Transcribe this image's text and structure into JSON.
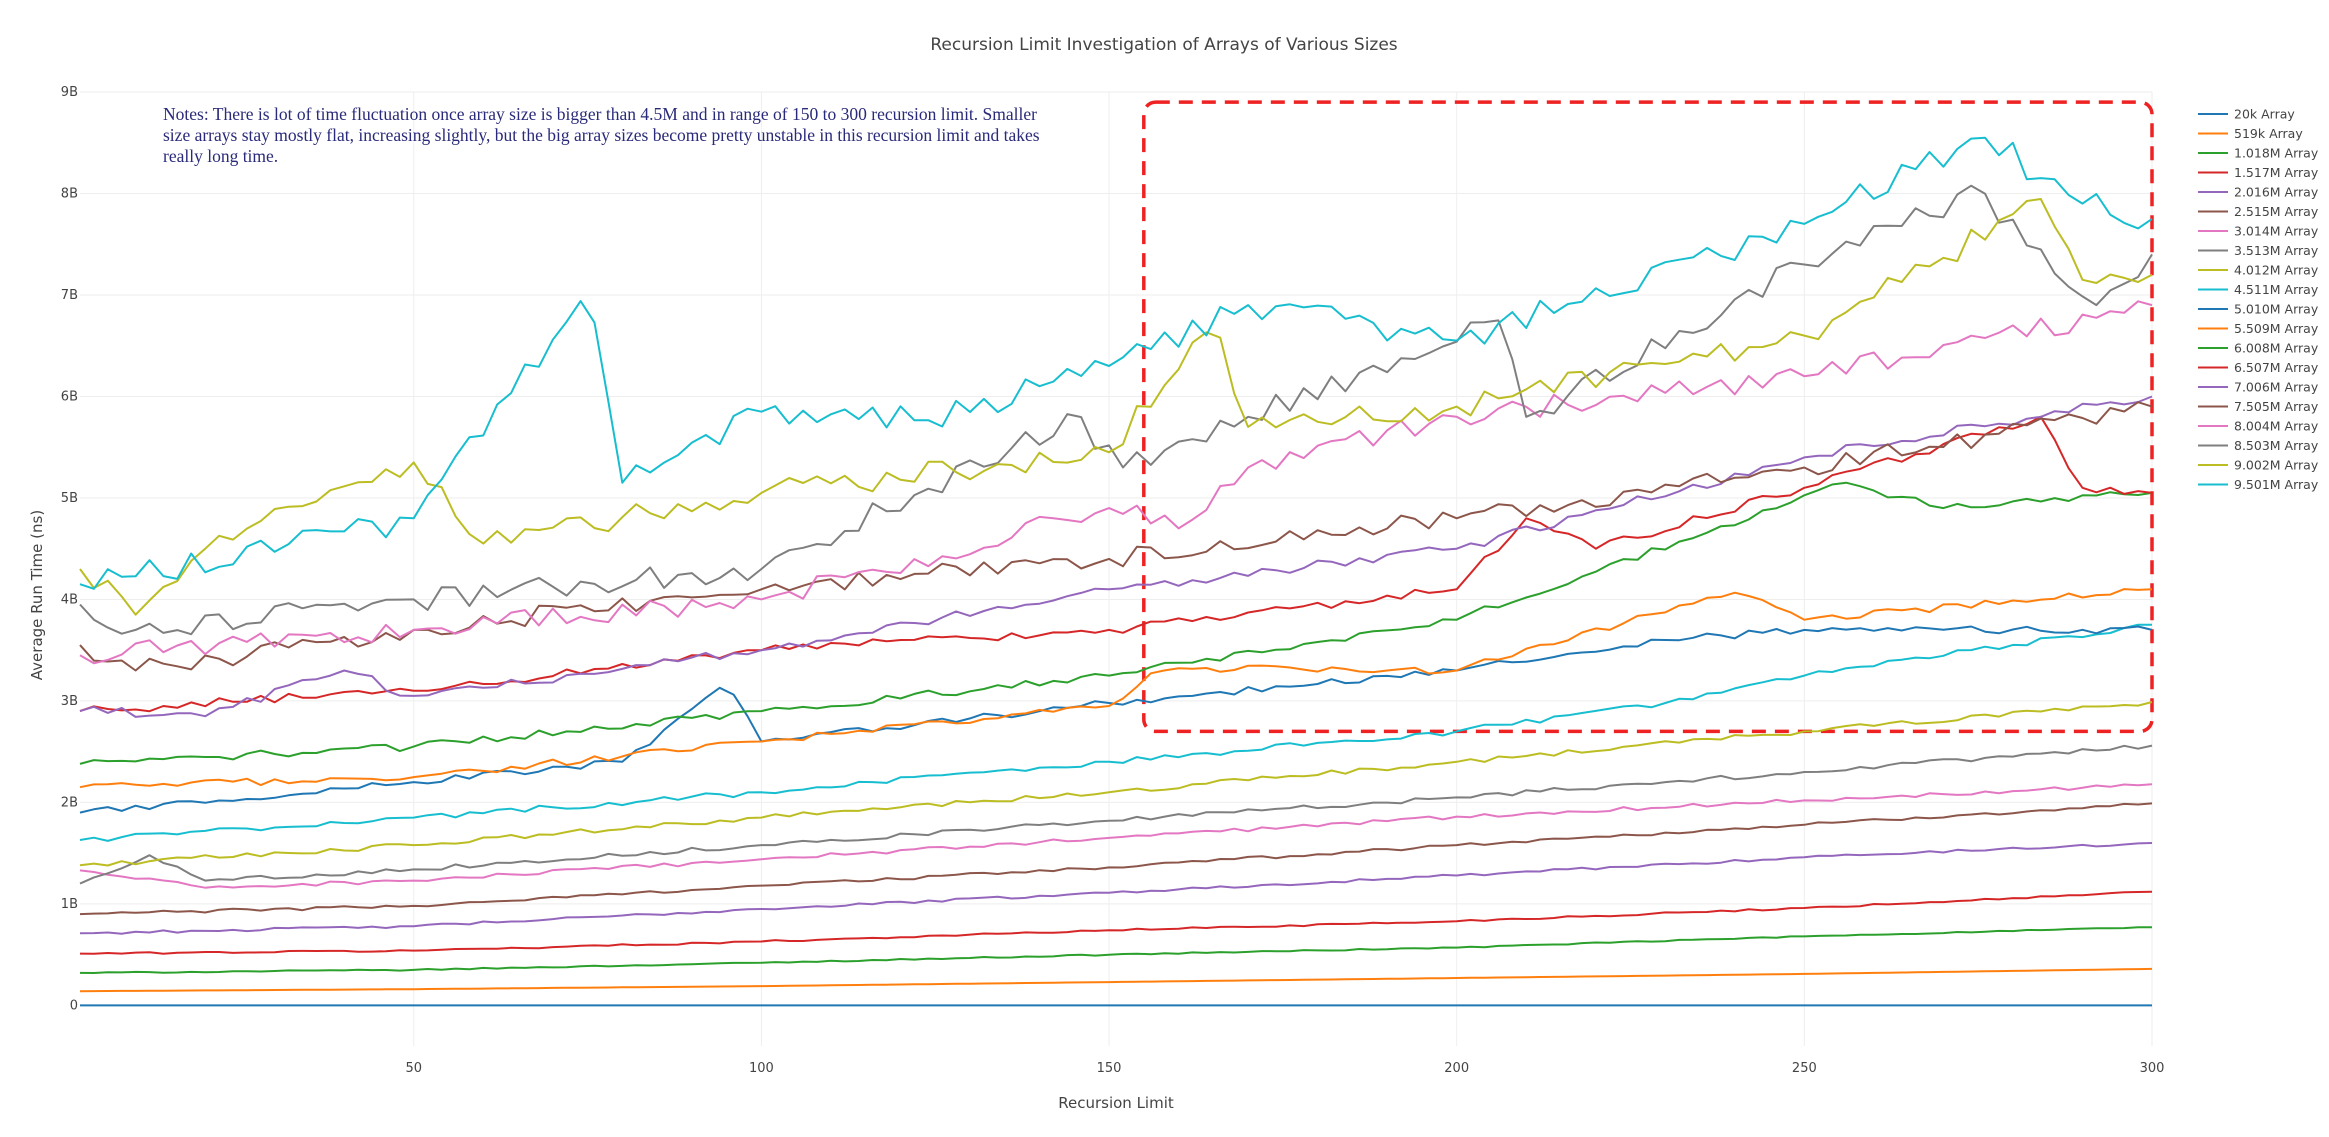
{
  "chart_data": {
    "type": "line",
    "title": "Recursion Limit Investigation of Arrays of Various Sizes",
    "xlabel": "Recursion Limit",
    "ylabel": "Average Run Time (ns)",
    "xlim": [
      2,
      300
    ],
    "ylim": [
      -400000000,
      9000000000
    ],
    "x_ticks": [
      50,
      100,
      150,
      200,
      250,
      300
    ],
    "y_ticks": [
      0,
      1000000000,
      2000000000,
      3000000000,
      4000000000,
      5000000000,
      6000000000,
      7000000000,
      8000000000,
      9000000000
    ],
    "y_tick_labels": [
      "0",
      "1B",
      "2B",
      "3B",
      "4B",
      "5B",
      "6B",
      "7B",
      "8B",
      "9B"
    ],
    "grid": true,
    "legend_position": "right",
    "annotation": "Notes:  There is lot of time fluctuation once array size is bigger than 4.5M and in range of 150 to 300 recursion limit. Smaller size arrays stay mostly flat, increasing slightly, but the big array sizes become pretty unstable in this recursion limit and takes really long time.",
    "highlight_region": {
      "x": [
        155,
        300
      ],
      "y": [
        2700000000,
        8900000000
      ],
      "style": "dashed",
      "color": "#ee2222"
    },
    "series": [
      {
        "name": "20k Array",
        "color": "#1f77b4",
        "points": [
          [
            2,
            0
          ],
          [
            300,
            0
          ]
        ]
      },
      {
        "name": "519k  Array",
        "color": "#ff7f0e",
        "points": [
          [
            2,
            140000000
          ],
          [
            50,
            160000000
          ],
          [
            100,
            190000000
          ],
          [
            150,
            230000000
          ],
          [
            200,
            270000000
          ],
          [
            250,
            310000000
          ],
          [
            300,
            360000000
          ]
        ]
      },
      {
        "name": "1.018M  Array",
        "color": "#2ca02c",
        "points": [
          [
            2,
            320000000
          ],
          [
            50,
            350000000
          ],
          [
            100,
            420000000
          ],
          [
            150,
            500000000
          ],
          [
            200,
            570000000
          ],
          [
            250,
            680000000
          ],
          [
            300,
            770000000
          ]
        ]
      },
      {
        "name": "1.517M  Array",
        "color": "#d62728",
        "points": [
          [
            2,
            510000000
          ],
          [
            50,
            540000000
          ],
          [
            100,
            630000000
          ],
          [
            150,
            740000000
          ],
          [
            200,
            830000000
          ],
          [
            250,
            960000000
          ],
          [
            300,
            1120000000
          ]
        ]
      },
      {
        "name": "2.016M Array",
        "color": "#9467bd",
        "points": [
          [
            2,
            710000000
          ],
          [
            50,
            780000000
          ],
          [
            100,
            950000000
          ],
          [
            150,
            1110000000
          ],
          [
            200,
            1280000000
          ],
          [
            250,
            1460000000
          ],
          [
            300,
            1600000000
          ]
        ]
      },
      {
        "name": "2.515M Array",
        "color": "#8c564b",
        "points": [
          [
            2,
            900000000
          ],
          [
            50,
            980000000
          ],
          [
            100,
            1180000000
          ],
          [
            150,
            1360000000
          ],
          [
            200,
            1580000000
          ],
          [
            250,
            1780000000
          ],
          [
            300,
            1990000000
          ]
        ]
      },
      {
        "name": "3.014M  Array",
        "color": "#e377c2",
        "points": [
          [
            2,
            1330000000
          ],
          [
            20,
            1160000000
          ],
          [
            50,
            1230000000
          ],
          [
            100,
            1440000000
          ],
          [
            150,
            1650000000
          ],
          [
            200,
            1860000000
          ],
          [
            250,
            2020000000
          ],
          [
            300,
            2180000000
          ]
        ]
      },
      {
        "name": "3.513M Array",
        "color": "#7f7f7f",
        "points": [
          [
            2,
            1200000000
          ],
          [
            12,
            1480000000
          ],
          [
            20,
            1230000000
          ],
          [
            50,
            1340000000
          ],
          [
            100,
            1580000000
          ],
          [
            150,
            1820000000
          ],
          [
            200,
            2050000000
          ],
          [
            250,
            2300000000
          ],
          [
            300,
            2560000000
          ]
        ]
      },
      {
        "name": "4.012M Array",
        "color": "#bcbd22",
        "points": [
          [
            2,
            1380000000
          ],
          [
            50,
            1580000000
          ],
          [
            100,
            1850000000
          ],
          [
            150,
            2100000000
          ],
          [
            200,
            2400000000
          ],
          [
            250,
            2700000000
          ],
          [
            300,
            2990000000
          ]
        ]
      },
      {
        "name": "4.511M Array",
        "color": "#17becf",
        "points": [
          [
            2,
            1630000000
          ],
          [
            50,
            1850000000
          ],
          [
            100,
            2100000000
          ],
          [
            150,
            2400000000
          ],
          [
            200,
            2700000000
          ],
          [
            230,
            2980000000
          ],
          [
            250,
            3250000000
          ],
          [
            300,
            3750000000
          ]
        ]
      },
      {
        "name": "5.010M Array",
        "color": "#1f77b4",
        "points": [
          [
            2,
            1900000000
          ],
          [
            50,
            2200000000
          ],
          [
            80,
            2400000000
          ],
          [
            95,
            3150000000
          ],
          [
            100,
            2600000000
          ],
          [
            150,
            2980000000
          ],
          [
            200,
            3300000000
          ],
          [
            230,
            3600000000
          ],
          [
            250,
            3700000000
          ],
          [
            300,
            3700000000
          ]
        ]
      },
      {
        "name": "5.509M Array",
        "color": "#ff7f0e",
        "points": [
          [
            2,
            2150000000
          ],
          [
            50,
            2250000000
          ],
          [
            100,
            2600000000
          ],
          [
            150,
            2950000000
          ],
          [
            157,
            3320000000
          ],
          [
            200,
            3300000000
          ],
          [
            241,
            4100000000
          ],
          [
            250,
            3800000000
          ],
          [
            300,
            4100000000
          ]
        ]
      },
      {
        "name": "6.008M Array",
        "color": "#2ca02c",
        "points": [
          [
            2,
            2380000000
          ],
          [
            50,
            2550000000
          ],
          [
            100,
            2900000000
          ],
          [
            150,
            3250000000
          ],
          [
            200,
            3800000000
          ],
          [
            256,
            5150000000
          ],
          [
            270,
            4900000000
          ],
          [
            300,
            5050000000
          ]
        ]
      },
      {
        "name": "6.507M Array",
        "color": "#d62728",
        "points": [
          [
            2,
            2900000000
          ],
          [
            50,
            3100000000
          ],
          [
            100,
            3500000000
          ],
          [
            150,
            3700000000
          ],
          [
            200,
            4100000000
          ],
          [
            210,
            4800000000
          ],
          [
            220,
            4500000000
          ],
          [
            284,
            5800000000
          ],
          [
            290,
            5100000000
          ],
          [
            300,
            5050000000
          ]
        ]
      },
      {
        "name": "7.006M Array",
        "color": "#9467bd",
        "points": [
          [
            2,
            2900000000
          ],
          [
            20,
            2850000000
          ],
          [
            40,
            3300000000
          ],
          [
            50,
            3050000000
          ],
          [
            100,
            3500000000
          ],
          [
            150,
            4100000000
          ],
          [
            200,
            4500000000
          ],
          [
            250,
            5400000000
          ],
          [
            300,
            6000000000
          ]
        ]
      },
      {
        "name": "7.505M Array",
        "color": "#8c564b",
        "points": [
          [
            2,
            3550000000
          ],
          [
            10,
            3300000000
          ],
          [
            50,
            3700000000
          ],
          [
            100,
            4100000000
          ],
          [
            150,
            4400000000
          ],
          [
            200,
            4800000000
          ],
          [
            250,
            5300000000
          ],
          [
            300,
            5900000000
          ]
        ]
      },
      {
        "name": "8.004M Array",
        "color": "#e377c2",
        "points": [
          [
            2,
            3450000000
          ],
          [
            50,
            3700000000
          ],
          [
            100,
            4000000000
          ],
          [
            150,
            4900000000
          ],
          [
            160,
            4700000000
          ],
          [
            170,
            5300000000
          ],
          [
            200,
            5800000000
          ],
          [
            250,
            6200000000
          ],
          [
            300,
            6900000000
          ]
        ]
      },
      {
        "name": "8.503M Array",
        "color": "#7f7f7f",
        "points": [
          [
            2,
            3950000000
          ],
          [
            10,
            3700000000
          ],
          [
            50,
            4000000000
          ],
          [
            100,
            4300000000
          ],
          [
            145,
            5800000000
          ],
          [
            152,
            5300000000
          ],
          [
            170,
            5800000000
          ],
          [
            206,
            6750000000
          ],
          [
            210,
            5800000000
          ],
          [
            250,
            7300000000
          ],
          [
            275,
            8000000000
          ],
          [
            292,
            6900000000
          ],
          [
            300,
            7400000000
          ]
        ]
      },
      {
        "name": "9.002M Array",
        "color": "#bcbd22",
        "points": [
          [
            2,
            4300000000
          ],
          [
            10,
            3850000000
          ],
          [
            20,
            4500000000
          ],
          [
            50,
            5350000000
          ],
          [
            60,
            4550000000
          ],
          [
            100,
            5050000000
          ],
          [
            150,
            5450000000
          ],
          [
            165,
            6750000000
          ],
          [
            170,
            5700000000
          ],
          [
            200,
            5900000000
          ],
          [
            250,
            6600000000
          ],
          [
            285,
            7950000000
          ],
          [
            290,
            7150000000
          ],
          [
            300,
            7200000000
          ]
        ]
      },
      {
        "name": "9.501M Array",
        "color": "#17becf",
        "points": [
          [
            2,
            4150000000
          ],
          [
            50,
            4800000000
          ],
          [
            75,
            7000000000
          ],
          [
            80,
            5150000000
          ],
          [
            100,
            5850000000
          ],
          [
            125,
            5800000000
          ],
          [
            150,
            6300000000
          ],
          [
            170,
            6900000000
          ],
          [
            200,
            6550000000
          ],
          [
            250,
            7700000000
          ],
          [
            276,
            8550000000
          ],
          [
            290,
            7900000000
          ],
          [
            300,
            7750000000
          ]
        ]
      }
    ]
  }
}
